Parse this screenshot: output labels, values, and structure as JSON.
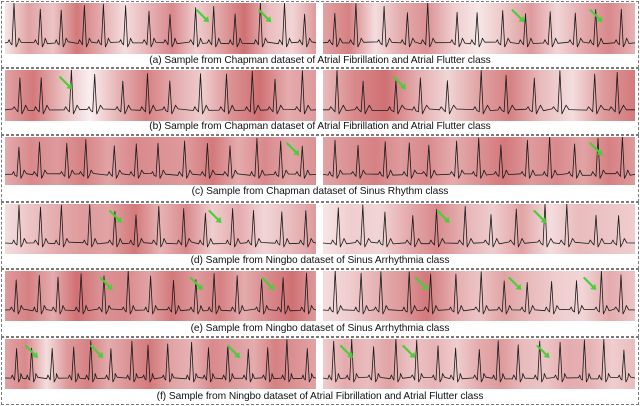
{
  "figure": {
    "rows": [
      {
        "caption": "(a) Sample from Chapman dataset of Atrial Fibrillation and Atrial Flutter class",
        "left": {
          "beats": 14,
          "seed": 3,
          "arrows": [
            0.64,
            0.84
          ],
          "heat": [
            0.15,
            0.55,
            0.35,
            0.8,
            0.5,
            0.2,
            0.45,
            0.7,
            0.3,
            0.55,
            0.85,
            0.4,
            0.25,
            0.6
          ]
        },
        "right": {
          "beats": 13,
          "seed": 7,
          "arrows": [
            0.63,
            0.88
          ],
          "heat": [
            0.55,
            0.75,
            0.2,
            0.5,
            0.65,
            0.3,
            0.15,
            0.35,
            0.6,
            0.25,
            0.5,
            0.7,
            0.45
          ]
        }
      },
      {
        "caption": "(b) Sample from Chapman dataset of Atrial Fibrillation and Atrial Flutter class",
        "left": {
          "beats": 12,
          "seed": 11,
          "arrows": [
            0.2
          ],
          "heat": [
            0.55,
            0.8,
            0.4,
            0.1,
            0.45,
            0.75,
            0.5,
            0.3,
            0.65,
            0.85,
            0.5,
            0.6
          ]
        },
        "right": {
          "beats": 11,
          "seed": 13,
          "arrows": [
            0.25
          ],
          "heat": [
            0.4,
            0.7,
            0.85,
            0.5,
            0.25,
            0.55,
            0.75,
            0.4,
            0.2,
            0.6,
            0.8
          ]
        }
      },
      {
        "caption": "(c) Sample from Chapman dataset of Sinus Rhythm class",
        "left": {
          "beats": 13,
          "seed": 17,
          "arrows": [
            0.93
          ],
          "heat": [
            0.5,
            0.7,
            0.6,
            0.75,
            0.55,
            0.7,
            0.65,
            0.6,
            0.8,
            0.5,
            0.7,
            0.55,
            0.65
          ]
        },
        "right": {
          "beats": 13,
          "seed": 19,
          "arrows": [
            0.88
          ],
          "heat": [
            0.55,
            0.65,
            0.75,
            0.6,
            0.7,
            0.5,
            0.65,
            0.8,
            0.6,
            0.7,
            0.55,
            0.75,
            0.6
          ]
        }
      },
      {
        "caption": "(d) Sample from Ningbo dataset of Sinus Arrhythmia class",
        "left": {
          "beats": 13,
          "seed": 23,
          "arrows": [
            0.36,
            0.68
          ],
          "heat": [
            0.2,
            0.35,
            0.5,
            0.6,
            0.55,
            0.8,
            0.45,
            0.7,
            0.3,
            0.5,
            0.25,
            0.4,
            0.6
          ]
        },
        "right": {
          "beats": 12,
          "seed": 29,
          "arrows": [
            0.39,
            0.7
          ],
          "heat": [
            0.15,
            0.3,
            0.25,
            0.5,
            0.7,
            0.45,
            0.3,
            0.55,
            0.2,
            0.4,
            0.35,
            0.3
          ]
        }
      },
      {
        "caption": "(e) Sample from Ningbo dataset of Sinus Arrhythmia class",
        "left": {
          "beats": 14,
          "seed": 31,
          "arrows": [
            0.33,
            0.62,
            0.85
          ],
          "heat": [
            0.6,
            0.75,
            0.5,
            0.85,
            0.65,
            0.7,
            0.55,
            0.8,
            0.6,
            0.75,
            0.5,
            0.7,
            0.85,
            0.6
          ]
        },
        "right": {
          "beats": 13,
          "seed": 37,
          "arrows": [
            0.32,
            0.62,
            0.86
          ],
          "heat": [
            0.2,
            0.3,
            0.45,
            0.6,
            0.8,
            0.5,
            0.35,
            0.55,
            0.4,
            0.3,
            0.25,
            0.5,
            0.35
          ]
        }
      },
      {
        "caption": "(f) Sample from Ningbo dataset of Atrial Fibrillation and Atrial Flutter class",
        "left": {
          "beats": 16,
          "seed": 41,
          "arrows": [
            0.09,
            0.3,
            0.74
          ],
          "heat": [
            0.55,
            0.7,
            0.2,
            0.6,
            0.75,
            0.5,
            0.65,
            0.8,
            0.55,
            0.45,
            0.7,
            0.6,
            0.5,
            0.75,
            0.65,
            0.55
          ]
        },
        "right": {
          "beats": 15,
          "seed": 43,
          "arrows": [
            0.08,
            0.28,
            0.71
          ],
          "heat": [
            0.3,
            0.5,
            0.4,
            0.55,
            0.35,
            0.45,
            0.3,
            0.5,
            0.6,
            0.4,
            0.35,
            0.5,
            0.45,
            0.3,
            0.4
          ]
        }
      }
    ]
  },
  "colors": {
    "heat_low": "#ffffff",
    "heat_high": "#c8575a",
    "trace": "#1a1a1a",
    "arrow": "#4ccd3a"
  }
}
